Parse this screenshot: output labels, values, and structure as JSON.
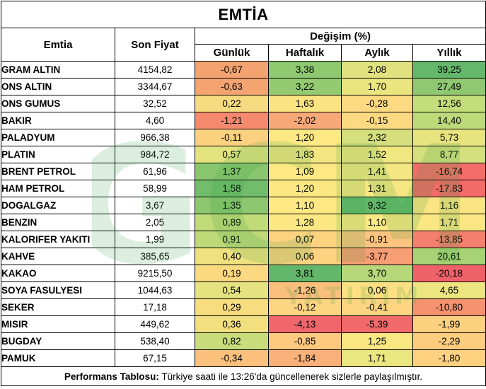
{
  "title": "EMTİA",
  "headers": {
    "commodity": "Emtia",
    "last_price": "Son Fiyat",
    "change_group": "Değişim (%)",
    "daily": "Günlük",
    "weekly": "Haftalık",
    "monthly": "Aylık",
    "yearly": "Yıllık"
  },
  "rows": [
    {
      "name": "GRAM ALTIN",
      "price": "4154,82",
      "d": "-0,67",
      "w": "3,38",
      "m": "2,08",
      "y": "39,25",
      "dc": "#f3a36f",
      "wc": "#8ec86f",
      "mc": "#dfe27f",
      "yc": "#65b86b"
    },
    {
      "name": "ONS ALTIN",
      "price": "3344,67",
      "d": "-0,63",
      "w": "3,22",
      "m": "1,70",
      "y": "27,49",
      "dc": "#f4a470",
      "wc": "#94ca70",
      "mc": "#eae57f",
      "yc": "#8fc871"
    },
    {
      "name": "ONS GUMUS",
      "price": "32,52",
      "d": "0,22",
      "w": "1,63",
      "m": "-0,28",
      "y": "12,56",
      "dc": "#f7db80",
      "wc": "#fae481",
      "mc": "#fdd982",
      "yc": "#c3dd7b"
    },
    {
      "name": "BAKIR",
      "price": "4,60",
      "d": "-1,21",
      "w": "-2,02",
      "m": "-0,15",
      "y": "14,40",
      "dc": "#f58a6f",
      "wc": "#f6a877",
      "mc": "#fdda82",
      "yc": "#bcda7a"
    },
    {
      "name": "PALADYUM",
      "price": "966,38",
      "d": "-0,11",
      "w": "1,20",
      "m": "2,32",
      "y": "5,73",
      "dc": "#fbd07f",
      "wc": "#fde983",
      "mc": "#d5df7d",
      "yc": "#e7e480"
    },
    {
      "name": "PLATIN",
      "price": "984,72",
      "d": "0,57",
      "w": "1,83",
      "m": "1,52",
      "y": "8,77",
      "dc": "#e3e37f",
      "wc": "#f3e681",
      "mc": "#f1e780",
      "yc": "#d4df7d"
    },
    {
      "name": "BRENT PETROL",
      "price": "61,96",
      "d": "1,37",
      "w": "1,09",
      "m": "1,41",
      "y": "-16,74",
      "dc": "#89c66e",
      "wc": "#fde883",
      "mc": "#f4e781",
      "yc": "#f36e69"
    },
    {
      "name": "HAM PETROL",
      "price": "58,99",
      "d": "1,58",
      "w": "1,20",
      "m": "1,31",
      "y": "-17,83",
      "dc": "#72bd6b",
      "wc": "#fce883",
      "mc": "#f7e782",
      "yc": "#f26b69"
    },
    {
      "name": "DOGALGAZ",
      "price": "3,67",
      "d": "1,35",
      "w": "1,10",
      "m": "9,32",
      "y": "1,16",
      "dc": "#8dc76f",
      "wc": "#fde883",
      "mc": "#63b76a",
      "yc": "#fbe482"
    },
    {
      "name": "BENZIN",
      "price": "2,05",
      "d": "0,89",
      "w": "1,28",
      "m": "1,10",
      "y": "1,71",
      "dc": "#c1db79",
      "wc": "#fbe883",
      "mc": "#fae882",
      "yc": "#fae682"
    },
    {
      "name": "KALORIFER YAKITI",
      "price": "1,99",
      "d": "0,91",
      "w": "0,07",
      "m": "-0,91",
      "y": "-13,85",
      "dc": "#bfd979",
      "wc": "#fdd380",
      "mc": "#fcc47e",
      "yc": "#f47f6d"
    },
    {
      "name": "KAHVE",
      "price": "385,65",
      "d": "0,40",
      "w": "0,06",
      "m": "-3,77",
      "y": "20,61",
      "dc": "#efe180",
      "wc": "#fdd280",
      "mc": "#f79e74",
      "yc": "#a8d375"
    },
    {
      "name": "KAKAO",
      "price": "9215,50",
      "d": "0,19",
      "w": "3,81",
      "m": "3,70",
      "y": "-20,18",
      "dc": "#fad980",
      "wc": "#63b76a",
      "mc": "#b6d878",
      "yc": "#f0626a"
    },
    {
      "name": "SOYA FASULYESI",
      "price": "1044,63",
      "d": "0,54",
      "w": "-1,26",
      "m": "0,06",
      "y": "4,65",
      "dc": "#e4e380",
      "wc": "#fbbf7c",
      "mc": "#fde082",
      "yc": "#ece580"
    },
    {
      "name": "SEKER",
      "price": "17,18",
      "d": "0,29",
      "w": "-0,12",
      "m": "-0,41",
      "y": "-10,80",
      "dc": "#f8dc80",
      "wc": "#fdd482",
      "mc": "#fdd481",
      "yc": "#f59371"
    },
    {
      "name": "MISIR",
      "price": "449,62",
      "d": "0,36",
      "w": "-4,13",
      "m": "-5,39",
      "y": "-1,99",
      "dc": "#f2df80",
      "wc": "#f0666a",
      "mc": "#f06a6a",
      "yc": "#fbd07f"
    },
    {
      "name": "BUGDAY",
      "price": "538,40",
      "d": "0,82",
      "w": "-0,85",
      "m": "1,25",
      "y": "-2,29",
      "dc": "#c8dc7b",
      "wc": "#fcc97f",
      "mc": "#f9e882",
      "yc": "#fccd7f"
    },
    {
      "name": "PAMUK",
      "price": "67,15",
      "d": "-0,34",
      "w": "-1,84",
      "m": "1,71",
      "y": "-1,80",
      "dc": "#fbc17c",
      "wc": "#f9b079",
      "mc": "#eae680",
      "yc": "#fdd180"
    }
  ],
  "footer": {
    "label": "Performans Tablosu:",
    "text": " Türkiye saati ile 13:26'da güncellenerek sizlerle paylaşılmıştır."
  },
  "watermark": {
    "letters": "GCM",
    "subtitle": "YATIRIM",
    "color": "#2e9a3e"
  }
}
